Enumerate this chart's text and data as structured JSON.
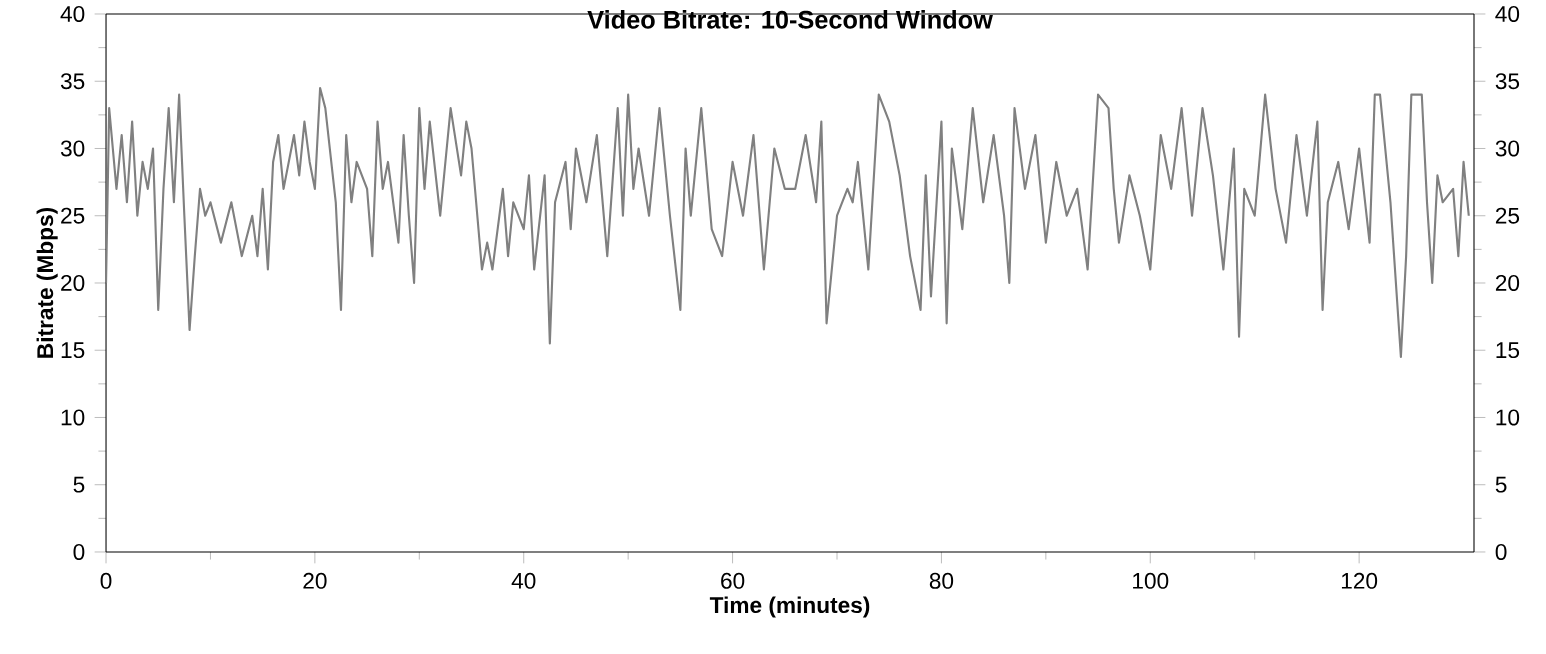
{
  "chart_data": {
    "type": "line",
    "title": "Video Bitrate: 10-Second Window",
    "xlabel": "Time (minutes)",
    "ylabel": "Bitrate (Mbps)",
    "xlim": [
      0,
      131
    ],
    "xticks": [
      0,
      20,
      40,
      60,
      80,
      100,
      120
    ],
    "ylim": [
      0,
      40
    ],
    "yticks": [
      0,
      5,
      10,
      15,
      20,
      25,
      30,
      35,
      40
    ],
    "y2lim": [
      0,
      40
    ],
    "y2ticks": [
      0,
      5,
      10,
      15,
      20,
      25,
      30,
      35,
      40
    ],
    "x": [
      0,
      0.3,
      1,
      1.5,
      2,
      2.5,
      3,
      3.5,
      4,
      4.5,
      5,
      5.5,
      6,
      6.5,
      7,
      7.5,
      8,
      8.5,
      9,
      9.5,
      10,
      11,
      12,
      13,
      14,
      14.5,
      15,
      15.5,
      16,
      16.5,
      17,
      18,
      18.5,
      19,
      19.5,
      20,
      20.5,
      21,
      22,
      22.5,
      23,
      23.5,
      24,
      25,
      25.5,
      26,
      26.5,
      27,
      28,
      28.5,
      29,
      29.5,
      30,
      30.5,
      31,
      32,
      33,
      34,
      34.5,
      35,
      36,
      36.5,
      37,
      38,
      38.5,
      39,
      40,
      40.5,
      41,
      42,
      42.5,
      43,
      44,
      44.5,
      45,
      46,
      47,
      48,
      49,
      49.5,
      50,
      50.5,
      51,
      52,
      53,
      54,
      55,
      55.5,
      56,
      57,
      58,
      59,
      60,
      61,
      62,
      63,
      64,
      65,
      66,
      67,
      68,
      68.5,
      69,
      70,
      71,
      71.5,
      72,
      73,
      74,
      75,
      76,
      77,
      78,
      78.5,
      79,
      80,
      80.5,
      81,
      82,
      83,
      84,
      85,
      86,
      86.5,
      87,
      88,
      89,
      90,
      91,
      92,
      93,
      94,
      95,
      96,
      96.5,
      97,
      98,
      99,
      100,
      101,
      102,
      103,
      104,
      105,
      106,
      107,
      108,
      108.5,
      109,
      110,
      111,
      112,
      113,
      114,
      115,
      116,
      116.5,
      117,
      118,
      119,
      120,
      121,
      121.5,
      122,
      123,
      124,
      124.5,
      125,
      126,
      126.5,
      127,
      127.5,
      128,
      129,
      129.5,
      130,
      130.5
    ],
    "series": [
      {
        "color": "#808080",
        "values": [
          20,
          33,
          27,
          31,
          26,
          32,
          25,
          29,
          27,
          30,
          18,
          27,
          33,
          26,
          34,
          25,
          16.5,
          22,
          27,
          25,
          26,
          23,
          26,
          22,
          25,
          22,
          27,
          21,
          29,
          31,
          27,
          31,
          28,
          32,
          29,
          27,
          34.5,
          33,
          26,
          18,
          31,
          26,
          29,
          27,
          22,
          32,
          27,
          29,
          23,
          31,
          25,
          20,
          33,
          27,
          32,
          25,
          33,
          28,
          32,
          30,
          21,
          23,
          21,
          27,
          22,
          26,
          24,
          28,
          21,
          28,
          15.5,
          26,
          29,
          24,
          30,
          26,
          31,
          22,
          33,
          25,
          34,
          27,
          30,
          25,
          33,
          25,
          18,
          30,
          25,
          33,
          24,
          22,
          29,
          25,
          31,
          21,
          30,
          27,
          27,
          31,
          26,
          32,
          17,
          25,
          27,
          26,
          29,
          21,
          34,
          32,
          28,
          22,
          18,
          28,
          19,
          32,
          17,
          30,
          24,
          33,
          26,
          31,
          25,
          20,
          33,
          27,
          31,
          23,
          29,
          25,
          27,
          21,
          34,
          33,
          27,
          23,
          28,
          25,
          21,
          31,
          27,
          33,
          25,
          33,
          28,
          21,
          30,
          16,
          27,
          25,
          34,
          27,
          23,
          31,
          25,
          32,
          18,
          26,
          29,
          24,
          30,
          23,
          34,
          34,
          26,
          14.5,
          22,
          34,
          34,
          26,
          20,
          28,
          26,
          27,
          22,
          29,
          25
        ]
      }
    ]
  }
}
